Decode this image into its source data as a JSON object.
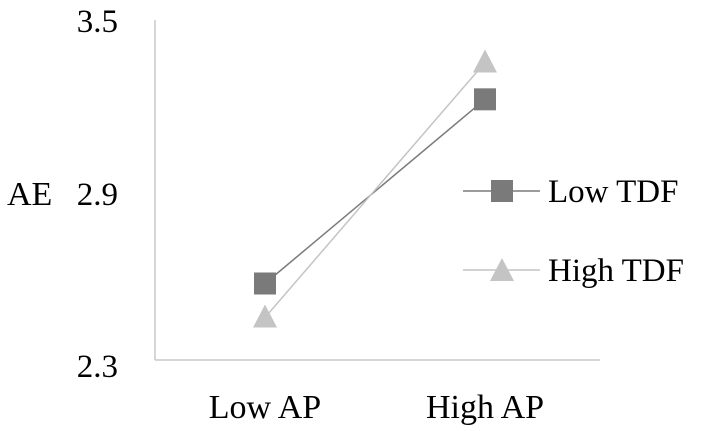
{
  "chart_data": {
    "type": "line",
    "title": "",
    "xlabel": "",
    "ylabel": "AE",
    "categories": [
      "Low AP",
      "High AP"
    ],
    "series": [
      {
        "name": "Low TDF",
        "values": [
          2.57,
          3.22
        ],
        "color": "#7a7a7a",
        "marker": "square"
      },
      {
        "name": "High TDF",
        "values": [
          2.45,
          3.35
        ],
        "color": "#c4c4c4",
        "marker": "triangle"
      }
    ],
    "ylim": [
      2.3,
      3.5
    ],
    "yticks": [
      "3.5",
      "2.9",
      "2.3"
    ],
    "grid": false,
    "legend": "right"
  }
}
